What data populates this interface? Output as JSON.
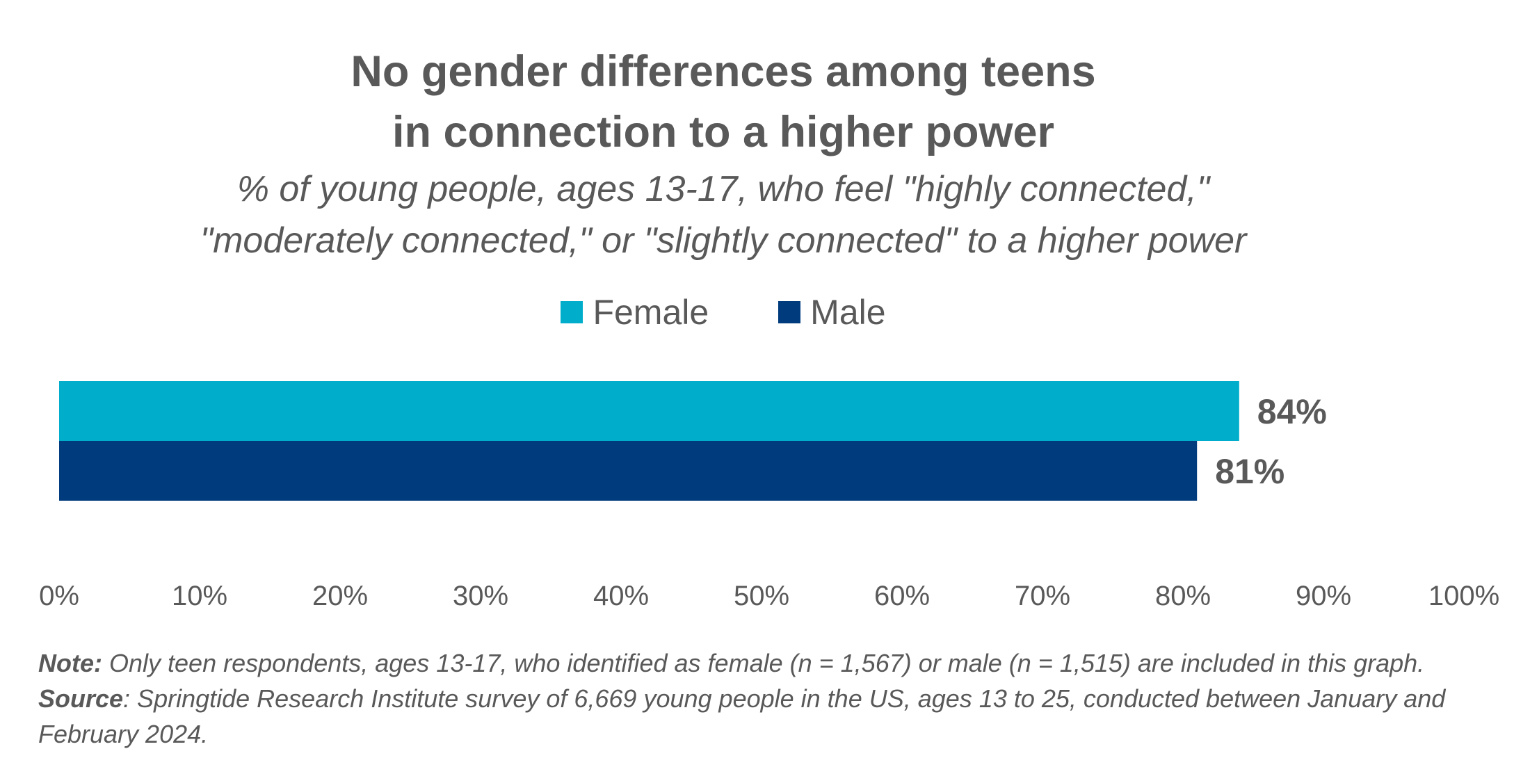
{
  "title": {
    "line1": "No gender differences among teens",
    "line2": "in connection to a higher power"
  },
  "subtitle": {
    "line1": "% of young people, ages 13-17, who feel \"highly connected,\"",
    "line2": "\"moderately connected,\" or \"slightly connected\" to a higher power"
  },
  "legend": [
    {
      "label": "Female",
      "color": "#00AECB"
    },
    {
      "label": "Male",
      "color": "#003B7D"
    }
  ],
  "chart_data": {
    "type": "bar",
    "orientation": "horizontal",
    "categories": [
      ""
    ],
    "series": [
      {
        "name": "Female",
        "values": [
          84
        ],
        "color": "#00AECB",
        "label": "84%"
      },
      {
        "name": "Male",
        "values": [
          81
        ],
        "color": "#003B7D",
        "label": "81%"
      }
    ],
    "xlim": [
      0,
      100
    ],
    "xticks": [
      "0%",
      "10%",
      "20%",
      "30%",
      "40%",
      "50%",
      "60%",
      "70%",
      "80%",
      "90%",
      "100%"
    ],
    "grid": false,
    "legend_position": "top-center"
  },
  "note": {
    "note_label": "Note:",
    "note_text": " Only teen respondents, ages 13-17, who identified as female (n = 1,567) or male (n = 1,515) are included in this graph.",
    "source_label": "Source",
    "source_text": ": Springtide Research Institute survey of 6,669 young people in the US, ages 13 to 25, conducted between January and February 2024."
  }
}
